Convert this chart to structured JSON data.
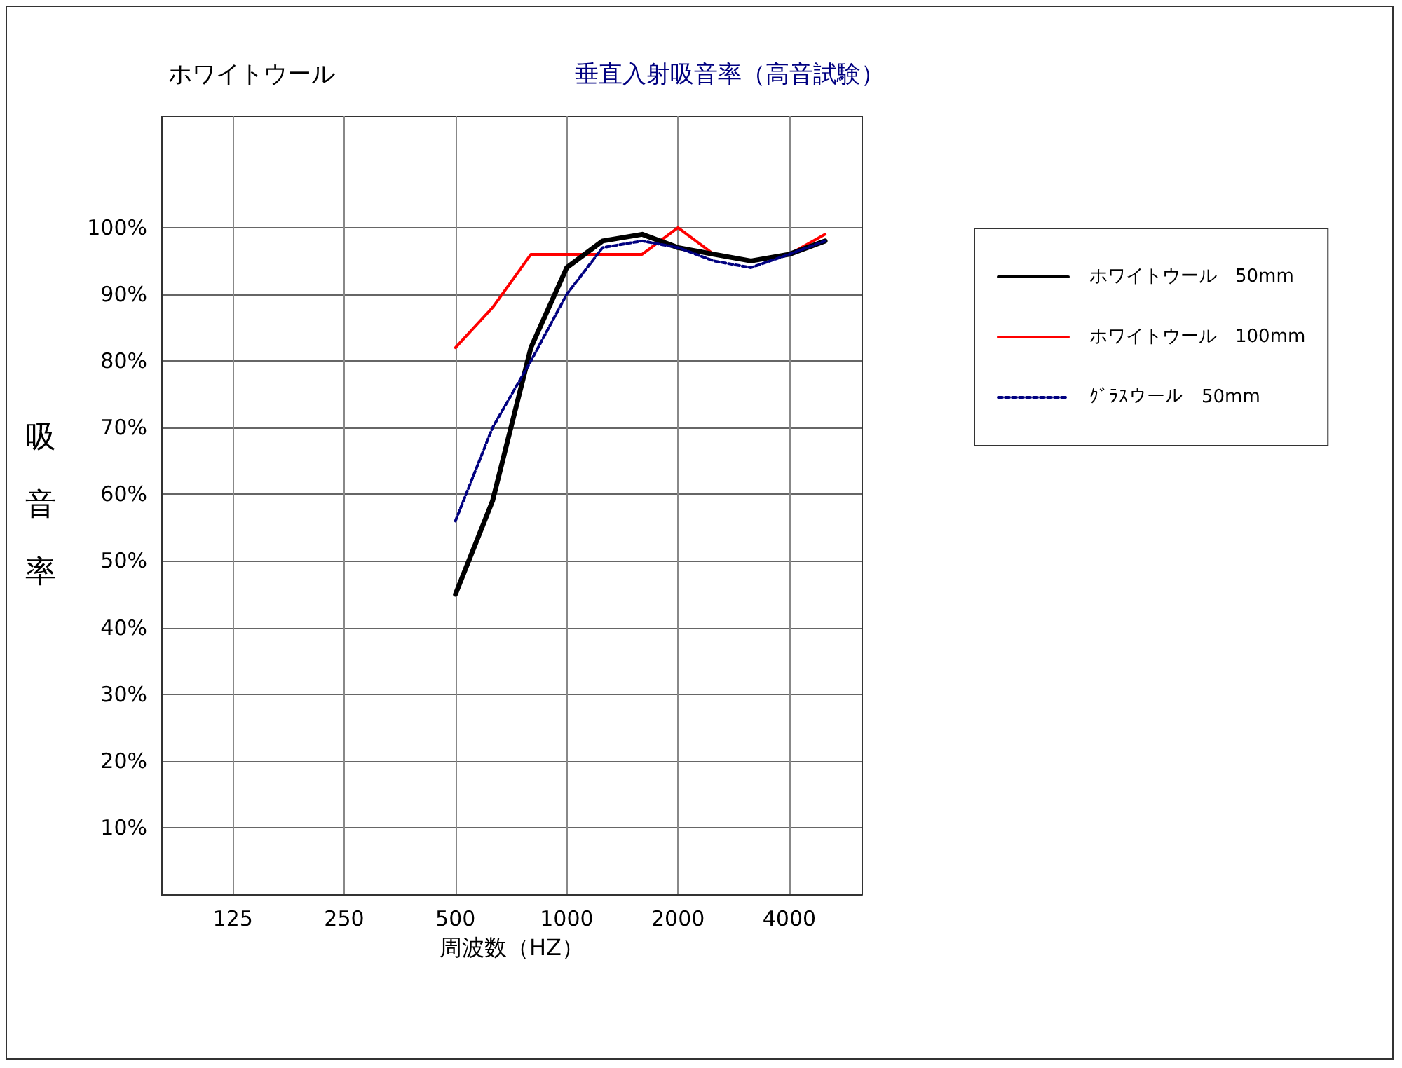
{
  "chart_data": {
    "type": "line",
    "title": "ホワイトウール",
    "subtitle": "垂直入射吸音率（高音試験）",
    "xlabel": "周波数（HZ）",
    "ylabel": "吸音率",
    "x": [
      500,
      630,
      800,
      1000,
      1250,
      1600,
      2000,
      2500,
      3150,
      4000,
      5000
    ],
    "series": [
      {
        "name": "ホワイトウール　50mm",
        "color": "#000000",
        "line_style": "solid",
        "values": [
          45,
          59,
          82,
          94,
          98,
          99,
          97,
          96,
          95,
          96,
          98
        ]
      },
      {
        "name": "ホワイトウール　100mm",
        "color": "#ff0000",
        "line_style": "solid",
        "values": [
          82,
          88,
          96,
          96,
          96,
          96,
          100,
          96,
          95,
          96,
          99
        ]
      },
      {
        "name": "ｸﾞﾗｽウール　50mm",
        "color": "#000080",
        "line_style": "dashed",
        "values": [
          56,
          70,
          80,
          90,
          97,
          98,
          97,
          95,
          94,
          96,
          98
        ]
      }
    ],
    "log": "x",
    "xlim": [
      80,
      6300
    ],
    "xticks": [
      125,
      250,
      500,
      1000,
      2000,
      4000
    ],
    "ylim": [
      0,
      116.7
    ],
    "yticks": [
      {
        "value": 10,
        "label": "10%"
      },
      {
        "value": 20,
        "label": "20%"
      },
      {
        "value": 30,
        "label": "30%"
      },
      {
        "value": 40,
        "label": "40%"
      },
      {
        "value": 50,
        "label": "50%"
      },
      {
        "value": 60,
        "label": "60%"
      },
      {
        "value": 70,
        "label": "70%"
      },
      {
        "value": 80,
        "label": "80%"
      },
      {
        "value": 90,
        "label": "90%"
      },
      {
        "value": 100,
        "label": "100%"
      }
    ],
    "grid": true,
    "legend": "right",
    "marker": "none"
  }
}
